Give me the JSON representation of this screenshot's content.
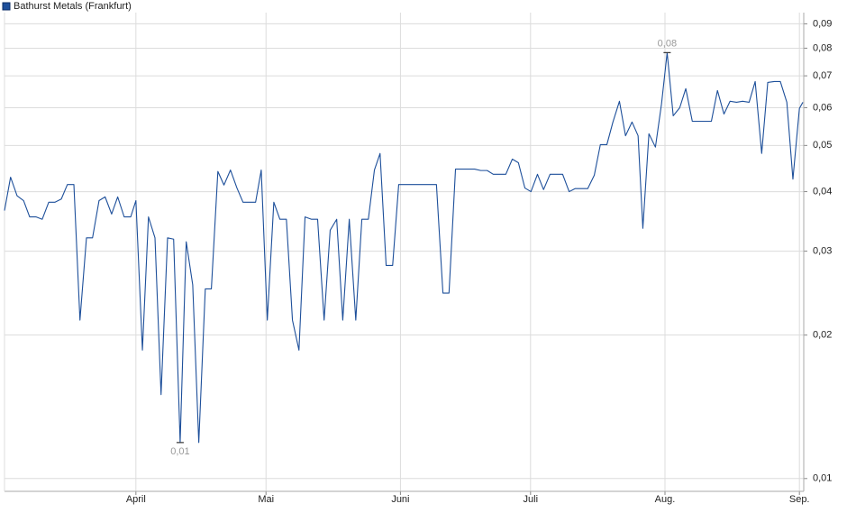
{
  "chart_data": {
    "type": "line",
    "log_scale": true,
    "grid": true,
    "legend": "top-left",
    "xlim": [
      60.7,
      245
    ],
    "xticks": [
      {
        "value": 91,
        "label": "April"
      },
      {
        "value": 121,
        "label": "Mai"
      },
      {
        "value": 152,
        "label": "Juni"
      },
      {
        "value": 182,
        "label": "Juli"
      },
      {
        "value": 213,
        "label": "Aug."
      },
      {
        "value": 244,
        "label": "Sep."
      }
    ],
    "ylim": [
      0.0094,
      0.095
    ],
    "yticks": [
      {
        "value": 0.01,
        "label": "0,01"
      },
      {
        "value": 0.02,
        "label": "0,02"
      },
      {
        "value": 0.03,
        "label": "0,03"
      },
      {
        "value": 0.04,
        "label": "0,04"
      },
      {
        "value": 0.05,
        "label": "0,05"
      },
      {
        "value": 0.06,
        "label": "0,06"
      },
      {
        "value": 0.07,
        "label": "0,07"
      },
      {
        "value": 0.08,
        "label": "0,08"
      },
      {
        "value": 0.09,
        "label": "0,09"
      }
    ],
    "x": [
      60.7,
      62.1,
      63.6,
      65.1,
      66.5,
      68.0,
      69.4,
      70.9,
      72.3,
      73.8,
      75.2,
      76.7,
      78.1,
      79.6,
      81.0,
      82.5,
      83.9,
      85.4,
      86.8,
      88.3,
      89.8,
      91.0,
      92.5,
      93.9,
      95.4,
      96.8,
      98.3,
      99.7,
      101.2,
      102.6,
      104.1,
      105.5,
      107.0,
      108.4,
      109.9,
      111.3,
      112.8,
      114.3,
      115.7,
      117.2,
      118.6,
      119.9,
      121.3,
      122.8,
      124.2,
      125.7,
      127.1,
      128.6,
      130.0,
      131.5,
      132.9,
      134.4,
      135.8,
      137.3,
      138.7,
      140.2,
      141.7,
      143.1,
      144.6,
      146.0,
      147.3,
      148.7,
      150.2,
      151.6,
      153.1,
      154.5,
      156.0,
      157.4,
      158.9,
      160.3,
      161.8,
      163.2,
      164.7,
      166.2,
      167.6,
      169.1,
      170.5,
      172.0,
      173.4,
      174.9,
      176.3,
      177.8,
      179.2,
      180.7,
      182.1,
      183.6,
      185.0,
      186.5,
      187.9,
      189.4,
      190.9,
      192.3,
      193.8,
      195.2,
      196.7,
      198.1,
      199.6,
      201.0,
      202.5,
      203.9,
      205.4,
      206.8,
      207.9,
      209.3,
      210.8,
      212.2,
      213.5,
      214.9,
      216.4,
      217.8,
      219.3,
      220.8,
      222.2,
      223.7,
      225.1,
      226.6,
      228.0,
      229.5,
      230.9,
      232.4,
      233.8,
      235.3,
      236.7,
      238.2,
      239.6,
      241.1,
      242.5,
      244.0,
      244.8
    ],
    "series": [
      {
        "name": "Bathurst Metals (Frankfurt)",
        "color": "#1d4f9a",
        "values": [
          0.0365,
          0.0429,
          0.0392,
          0.0383,
          0.0354,
          0.0354,
          0.035,
          0.038,
          0.038,
          0.0386,
          0.0414,
          0.0414,
          0.0215,
          0.032,
          0.032,
          0.0383,
          0.039,
          0.0359,
          0.039,
          0.0354,
          0.0354,
          0.0383,
          0.0186,
          0.0354,
          0.032,
          0.015,
          0.032,
          0.0318,
          0.0119,
          0.0314,
          0.0255,
          0.0119,
          0.025,
          0.025,
          0.0441,
          0.0413,
          0.0444,
          0.0407,
          0.038,
          0.038,
          0.038,
          0.0444,
          0.0215,
          0.038,
          0.035,
          0.035,
          0.0215,
          0.0186,
          0.0354,
          0.035,
          0.035,
          0.0215,
          0.0332,
          0.035,
          0.0215,
          0.035,
          0.0215,
          0.035,
          0.035,
          0.0444,
          0.0481,
          0.028,
          0.028,
          0.0414,
          0.0414,
          0.0414,
          0.0414,
          0.0414,
          0.0414,
          0.0414,
          0.0245,
          0.0245,
          0.0446,
          0.0446,
          0.0446,
          0.0446,
          0.0443,
          0.0443,
          0.0435,
          0.0435,
          0.0435,
          0.0468,
          0.046,
          0.0407,
          0.04,
          0.0435,
          0.0404,
          0.0435,
          0.0435,
          0.0435,
          0.04,
          0.0406,
          0.0406,
          0.0406,
          0.0433,
          0.0502,
          0.0502,
          0.056,
          0.0619,
          0.0524,
          0.056,
          0.0524,
          0.0335,
          0.0529,
          0.0496,
          0.0611,
          0.0783,
          0.0577,
          0.06,
          0.0658,
          0.0562,
          0.0562,
          0.0562,
          0.0562,
          0.0652,
          0.0582,
          0.0619,
          0.0616,
          0.0619,
          0.0616,
          0.0681,
          0.0481,
          0.0678,
          0.0681,
          0.0681,
          0.0616,
          0.0425,
          0.0598,
          0.0616
        ]
      }
    ],
    "annotations": [
      {
        "label": "0,01",
        "x": 101.2,
        "value": 0.0119,
        "position": "below"
      },
      {
        "label": "0,08",
        "x": 213.5,
        "value": 0.0783,
        "position": "above"
      }
    ]
  }
}
